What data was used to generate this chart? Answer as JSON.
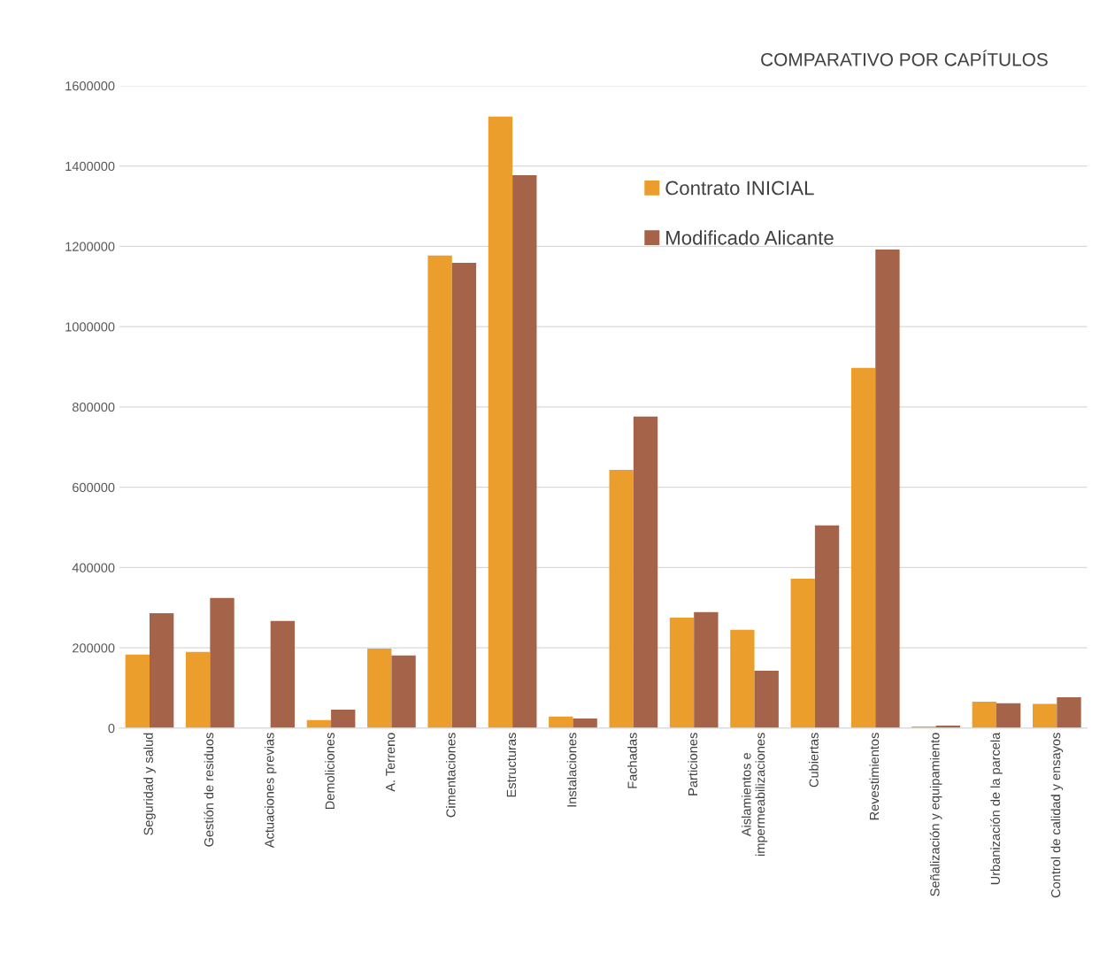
{
  "chart_data": {
    "type": "bar",
    "title": "COMPARATIVO POR CAPÍTULOS",
    "categories": [
      "Seguridad y salud",
      "Gestión de residuos",
      "Actuaciones previas",
      "Demoliciones",
      "A. Terreno",
      "Cimentaciones",
      "Estructuras",
      "Instalaciones",
      "Fachadas",
      "Particiones",
      "Aislamientos e\nimpermeabilizaciones",
      "Cubiertas",
      "Revestimientos",
      "Señalización y equipamiento",
      "Urbanización de la parcela",
      "Control de calidad y ensayos"
    ],
    "series": [
      {
        "name": "Contrato INICIAL",
        "color": "#eb9e2b",
        "values": [
          183000,
          190000,
          null,
          20000,
          198000,
          1177000,
          1523000,
          29000,
          643000,
          275000,
          245000,
          372000,
          897000,
          4000,
          66000,
          60000
        ]
      },
      {
        "name": "Modificado Alicante",
        "color": "#a5644a",
        "values": [
          286000,
          324000,
          267000,
          46000,
          181000,
          1159000,
          1377000,
          24000,
          776000,
          289000,
          143000,
          505000,
          1192000,
          6000,
          62000,
          77000
        ]
      }
    ],
    "ylim": [
      0,
      1600000
    ],
    "yticks": [
      0,
      200000,
      400000,
      600000,
      800000,
      1000000,
      1200000,
      1400000,
      1600000
    ],
    "grid": "y",
    "legend": "top right"
  }
}
